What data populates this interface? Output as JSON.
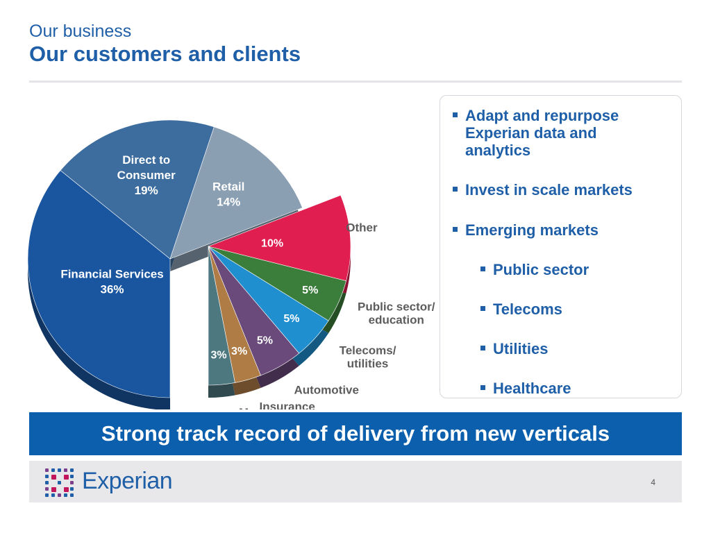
{
  "header": {
    "subtitle": "Our business",
    "title": "Our customers and clients"
  },
  "chart_data": {
    "type": "pie",
    "title": "",
    "exploded_group": [
      "Other",
      "Public sector/ education",
      "Telecoms/ utilities",
      "Automotive",
      "Insurance",
      "Media"
    ],
    "slices": [
      {
        "label": "Financial Services",
        "value": 36,
        "value_label": "36%",
        "color": "#1a56a0"
      },
      {
        "label": "Direct to Consumer",
        "value": 19,
        "value_label": "19%",
        "color": "#3d6d9e"
      },
      {
        "label": "Retail",
        "value": 14,
        "value_label": "14%",
        "color": "#8b9fb3"
      },
      {
        "label": "Other",
        "value": 10,
        "value_label": "10%",
        "color": "#e01e50"
      },
      {
        "label": "Public sector/ education",
        "value": 5,
        "value_label": "5%",
        "color": "#3b7d3a"
      },
      {
        "label": "Telecoms/ utilities",
        "value": 5,
        "value_label": "5%",
        "color": "#1f8fd0"
      },
      {
        "label": "Automotive",
        "value": 5,
        "value_label": "5%",
        "color": "#6a4a7a"
      },
      {
        "label": "Insurance",
        "value": 3,
        "value_label": "3%",
        "color": "#b07c45"
      },
      {
        "label": "Media",
        "value": 3,
        "value_label": "3%",
        "color": "#4e7880"
      }
    ]
  },
  "bullets": [
    {
      "level": 1,
      "text_lines": [
        "Adapt and repurpose",
        "Experian data and",
        "analytics"
      ]
    },
    {
      "level": 1,
      "text_lines": [
        "Invest in scale markets"
      ]
    },
    {
      "level": 1,
      "text_lines": [
        "Emerging markets"
      ]
    },
    {
      "level": 2,
      "text_lines": [
        "Public sector"
      ]
    },
    {
      "level": 2,
      "text_lines": [
        "Telecoms"
      ]
    },
    {
      "level": 2,
      "text_lines": [
        "Utilities"
      ]
    },
    {
      "level": 2,
      "text_lines": [
        "Healthcare"
      ]
    }
  ],
  "banner": {
    "text": "Strong track record of delivery from new verticals"
  },
  "footer": {
    "logo_text": "Experian",
    "page_number": "4",
    "logo_colors": [
      "#1f5fa8",
      "#c2185b",
      "#7b3f8c"
    ]
  }
}
